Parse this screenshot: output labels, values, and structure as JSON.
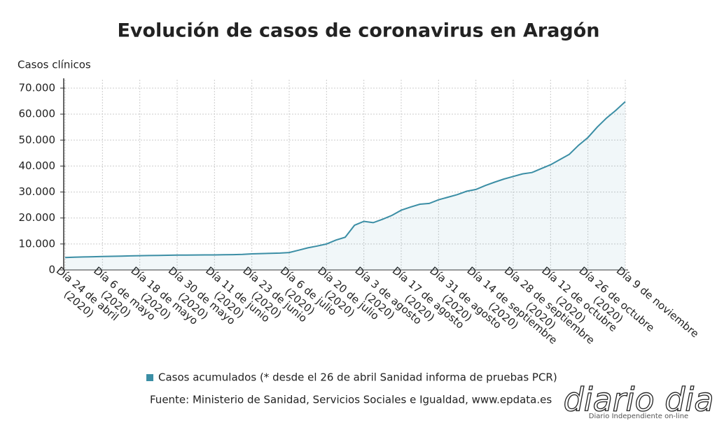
{
  "chart_data": {
    "type": "line",
    "title": "Evolución de casos de coronavirus en Aragón",
    "y_label": "Casos clínicos",
    "categories": [
      [
        "Día 24 de abril",
        "(2020)"
      ],
      null,
      null,
      null,
      [
        "Día 6 de mayo",
        "(2020)"
      ],
      null,
      null,
      null,
      [
        "Día 18 de mayo",
        "(2020)"
      ],
      null,
      null,
      null,
      [
        "Día 30 de mayo",
        "(2020)"
      ],
      null,
      null,
      null,
      [
        "Día 11 de junio",
        "(2020)"
      ],
      null,
      null,
      null,
      [
        "Día 23 de junio",
        "(2020)"
      ],
      null,
      null,
      null,
      [
        "Día 6 de julio",
        "(2020)"
      ],
      null,
      null,
      null,
      [
        "Día 20 de julio",
        "(2020)"
      ],
      null,
      null,
      null,
      [
        "Día 3 de agosto",
        "(2020)"
      ],
      null,
      null,
      null,
      [
        "Día 17 de agosto",
        "(2020)"
      ],
      null,
      null,
      null,
      [
        "Día 31 de agosto",
        "(2020)"
      ],
      null,
      null,
      null,
      [
        "Día 14 de septiembre",
        "(2020)"
      ],
      null,
      null,
      null,
      [
        "Día 28 de septiembre",
        "(2020)"
      ],
      null,
      null,
      null,
      [
        "Día 12 de octubre",
        "(2020)"
      ],
      null,
      null,
      null,
      [
        "Día 26 de octubre",
        "(2020)"
      ],
      null,
      null,
      null,
      [
        "Día 9 de noviembre"
      ]
    ],
    "series": [
      {
        "name": "Casos acumulados (* desde el 26 de abril Sanidad informa de pruebas PCR)",
        "color": "#3b8ea5",
        "values": [
          4800,
          4900,
          5000,
          5100,
          5200,
          5250,
          5300,
          5400,
          5500,
          5550,
          5600,
          5650,
          5700,
          5700,
          5750,
          5800,
          5800,
          5850,
          5900,
          6000,
          6200,
          6300,
          6400,
          6500,
          6700,
          7600,
          8500,
          9200,
          10000,
          11500,
          12600,
          17200,
          18700,
          18200,
          19500,
          21000,
          23000,
          24200,
          25300,
          25600,
          27000,
          28000,
          29000,
          30300,
          31000,
          32500,
          33800,
          35000,
          36000,
          37000,
          37500,
          39000,
          40500,
          42500,
          44500,
          48000,
          51000,
          55000,
          58500,
          61500,
          64800
        ]
      }
    ],
    "ylim": [
      0,
      70000
    ],
    "yticks": [
      0,
      {
        "value": 10000,
        "label": "10.000"
      },
      {
        "value": 20000,
        "label": "20.000"
      },
      {
        "value": 30000,
        "label": "30.000"
      },
      {
        "value": 40000,
        "label": "40.000"
      },
      {
        "value": 50000,
        "label": "50.000"
      },
      {
        "value": 60000,
        "label": "60.000"
      },
      {
        "value": 70000,
        "label": "70.000"
      }
    ],
    "grid": true,
    "area": true,
    "source": "Fuente: Ministerio de Sanidad, Servicios Sociales e Igualdad, www.epdata.es"
  },
  "logo": {
    "name": "diario dia",
    "tagline": "Diario Independiente on-line"
  }
}
